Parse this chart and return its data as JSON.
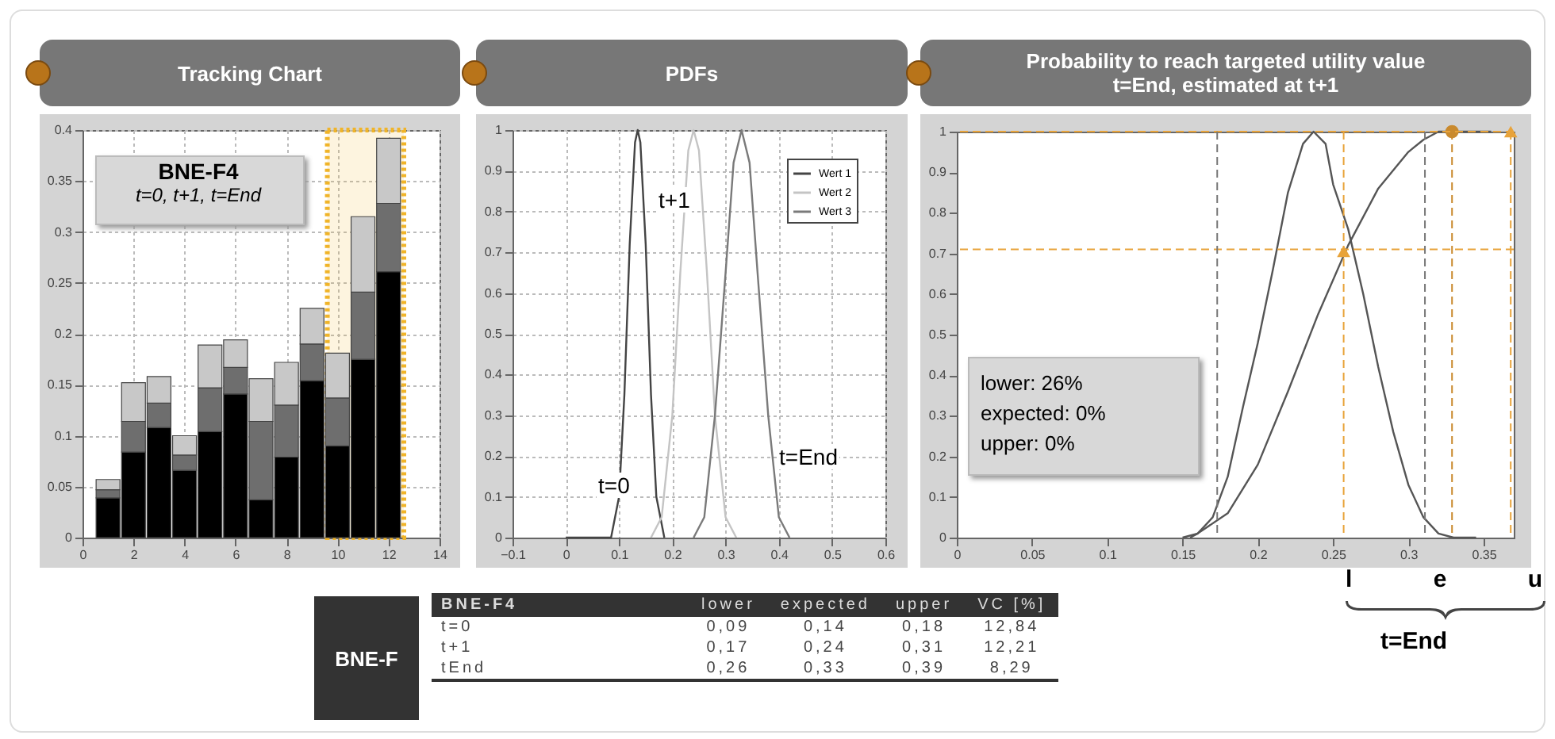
{
  "chart_data": [
    {
      "type": "bar",
      "title": "Tracking Chart",
      "stacked": true,
      "grid": true,
      "x": [
        1,
        2,
        3,
        4,
        5,
        6,
        7,
        8,
        9,
        10,
        11,
        12
      ],
      "xlim": [
        0,
        14
      ],
      "xticks": [
        0,
        2,
        4,
        6,
        8,
        10,
        12,
        14
      ],
      "ylim": [
        0,
        0.4
      ],
      "yticks": [
        0,
        0.05,
        0.1,
        0.15,
        0.2,
        0.25,
        0.3,
        0.35,
        0.4
      ],
      "series": [
        {
          "color": "#000000",
          "values": [
            0.039,
            0.084,
            0.108,
            0.066,
            0.104,
            0.141,
            0.037,
            0.079,
            0.154,
            0.09,
            0.175,
            0.261
          ]
        },
        {
          "color": "#6e6e6e",
          "values": [
            0.008,
            0.03,
            0.024,
            0.015,
            0.043,
            0.026,
            0.077,
            0.051,
            0.036,
            0.047,
            0.066,
            0.067
          ]
        },
        {
          "color": "#c8c8c8",
          "values": [
            0.01,
            0.038,
            0.026,
            0.019,
            0.042,
            0.027,
            0.042,
            0.042,
            0.035,
            0.044,
            0.074,
            0.064
          ]
        }
      ],
      "bands": [
        {
          "axis": "x",
          "from": 9.6,
          "to": 12.6,
          "color": "#f0b429"
        }
      ],
      "annotations": [
        "BNE-F4",
        "t=0, t+1, t=End"
      ]
    },
    {
      "type": "line",
      "title": "PDFs",
      "grid": true,
      "legend": "top right",
      "xlim": [
        -0.1,
        0.6
      ],
      "xticks": [
        -0.1,
        0,
        0.1,
        0.2,
        0.3,
        0.4,
        0.5,
        0.6
      ],
      "ylim": [
        0,
        1
      ],
      "yticks": [
        0,
        0.1,
        0.2,
        0.3,
        0.4,
        0.5,
        0.6,
        0.7,
        0.8,
        0.9,
        1
      ],
      "series": [
        {
          "name": "Wert 1",
          "color": "#444444",
          "x": [
            0,
            0.085,
            0.1,
            0.11,
            0.12,
            0.13,
            0.135,
            0.14,
            0.15,
            0.16,
            0.17,
            0.185
          ],
          "values": [
            0,
            0,
            0.1,
            0.35,
            0.72,
            0.97,
            1,
            0.97,
            0.72,
            0.35,
            0.1,
            0
          ]
        },
        {
          "name": "Wert 2",
          "color": "#c4c4c4",
          "x": [
            0.16,
            0.18,
            0.2,
            0.215,
            0.23,
            0.24,
            0.25,
            0.265,
            0.28,
            0.3,
            0.32
          ],
          "values": [
            0,
            0.05,
            0.3,
            0.65,
            0.95,
            1,
            0.95,
            0.65,
            0.3,
            0.05,
            0
          ]
        },
        {
          "name": "Wert 3",
          "color": "#7a7a7a",
          "x": [
            0.24,
            0.26,
            0.28,
            0.3,
            0.315,
            0.33,
            0.345,
            0.36,
            0.38,
            0.4,
            0.42
          ],
          "values": [
            0,
            0.05,
            0.3,
            0.65,
            0.92,
            1,
            0.92,
            0.65,
            0.3,
            0.05,
            0
          ]
        }
      ],
      "annotations": [
        "t=0",
        "t+1",
        "t=End"
      ]
    },
    {
      "type": "line",
      "title": "Probability to reach targeted utility value\nt=End, estimated at t+1",
      "grid": false,
      "xlim": [
        0,
        0.37
      ],
      "xticks": [
        0,
        0.05,
        0.1,
        0.15,
        0.2,
        0.25,
        0.3,
        0.35
      ],
      "ylim": [
        0,
        1
      ],
      "yticks": [
        0,
        0.1,
        0.2,
        0.3,
        0.4,
        0.5,
        0.6,
        0.7,
        0.8,
        0.9,
        1
      ],
      "series": [
        {
          "color": "#555555",
          "x": [
            0.15,
            0.16,
            0.17,
            0.18,
            0.19,
            0.2,
            0.21,
            0.22,
            0.23,
            0.237,
            0.245,
            0.25,
            0.26,
            0.27,
            0.28,
            0.29,
            0.3,
            0.31,
            0.32,
            0.33,
            0.345
          ],
          "values": [
            0,
            0.01,
            0.05,
            0.15,
            0.32,
            0.48,
            0.66,
            0.85,
            0.97,
            1,
            0.97,
            0.87,
            0.76,
            0.6,
            0.42,
            0.26,
            0.13,
            0.05,
            0.01,
            0,
            0
          ]
        },
        {
          "color": "#555555",
          "x": [
            0.155,
            0.16,
            0.18,
            0.2,
            0.22,
            0.24,
            0.26,
            0.28,
            0.3,
            0.31,
            0.32,
            0.355
          ],
          "values": [
            0,
            0.01,
            0.06,
            0.18,
            0.36,
            0.55,
            0.72,
            0.86,
            0.95,
            0.98,
            1,
            1
          ]
        },
        {
          "type": "scatter",
          "marker": "triangle",
          "color": "#e8a33a",
          "x": [
            0.257,
            0.368
          ],
          "values": [
            0.705,
            1
          ]
        },
        {
          "type": "scatter",
          "marker": "circle",
          "color": "#c98a2e",
          "x": [
            0.329
          ],
          "values": [
            1
          ]
        }
      ],
      "ref_lines": [
        {
          "axis": "y",
          "value": 1,
          "color": "#e8a33a",
          "line_style": "dashed"
        },
        {
          "axis": "y",
          "value": 0.71,
          "color": "#e8a33a",
          "line_style": "dashed"
        },
        {
          "axis": "x",
          "value": 0.173,
          "color": "#777777",
          "line_style": "dashed"
        },
        {
          "axis": "x",
          "value": 0.311,
          "color": "#777777",
          "line_style": "dashed"
        },
        {
          "axis": "x",
          "value": 0.257,
          "color": "#e8a33a",
          "line_style": "dashed"
        },
        {
          "axis": "x",
          "value": 0.329,
          "color": "#c98a2e",
          "line_style": "dashed"
        },
        {
          "axis": "x",
          "value": 0.368,
          "color": "#e8a33a",
          "line_style": "dashed"
        }
      ],
      "annotations": [
        "lower: 26%",
        "expected: 0%",
        "upper: 0%",
        "l",
        "e",
        "u",
        "t=End"
      ]
    },
    {
      "type": "other",
      "title": "BNE-F",
      "subtitle": "BNE-F4",
      "categories": [
        "lower",
        "expected",
        "upper",
        "VC [%]"
      ],
      "y_categories": [
        "t=0",
        "t+1",
        "tEnd"
      ],
      "cell_labels": [
        [
          "0,09",
          "0,14",
          "0,18",
          "12,84"
        ],
        [
          "0,17",
          "0,24",
          "0,31",
          "12,21"
        ],
        [
          "0,26",
          "0,33",
          "0,39",
          "8,29"
        ]
      ]
    }
  ]
}
